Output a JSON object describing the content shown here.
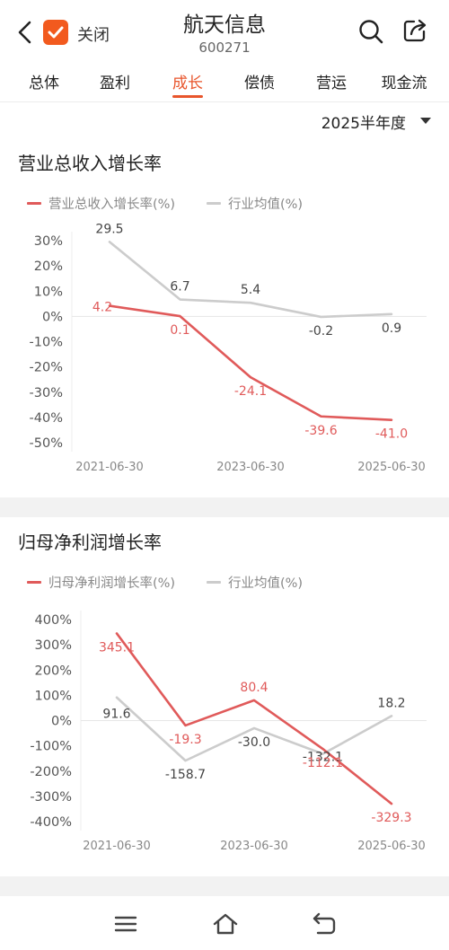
{
  "header": {
    "close_label": "关闭",
    "stock_name": "航天信息",
    "stock_code": "600271"
  },
  "tabs": [
    {
      "label": "总体",
      "active": false
    },
    {
      "label": "盈利",
      "active": false
    },
    {
      "label": "成长",
      "active": true
    },
    {
      "label": "偿债",
      "active": false
    },
    {
      "label": "营运",
      "active": false
    },
    {
      "label": "现金流",
      "active": false
    }
  ],
  "period": {
    "label": "2025半年度"
  },
  "colors": {
    "accent": "#e8552c",
    "series_main": "#e05a5a",
    "series_industry": "#cccccc"
  },
  "chart_data": [
    {
      "type": "line",
      "title": "营业总收入增长率",
      "x": [
        "2021-06-30",
        "2022-06-30",
        "2023-06-30",
        "2024-06-30",
        "2025-06-30"
      ],
      "x_tick_labels": [
        "2021-06-30",
        "2023-06-30",
        "2025-06-30"
      ],
      "y_tick_labels": [
        "30%",
        "20%",
        "10%",
        "0%",
        "-10%",
        "-20%",
        "-30%",
        "-40%",
        "-50%"
      ],
      "ylim": [
        -50,
        30
      ],
      "legend_position": "top-left",
      "grid": false,
      "series": [
        {
          "name": "营业总收入增长率(%)",
          "color": "#e05a5a",
          "values": [
            4.2,
            0.1,
            -24.1,
            -39.6,
            -41.0
          ],
          "labels": [
            "4.2",
            "0.1",
            "-24.1",
            "-39.6",
            "-41.0"
          ]
        },
        {
          "name": "行业均值(%)",
          "color": "#cccccc",
          "values": [
            29.5,
            6.7,
            5.4,
            -0.2,
            0.9
          ],
          "labels": [
            "29.5",
            "6.7",
            "5.4",
            "-0.2",
            "0.9"
          ]
        }
      ]
    },
    {
      "type": "line",
      "title": "归母净利润增长率",
      "x": [
        "2021-06-30",
        "2022-06-30",
        "2023-06-30",
        "2024-06-30",
        "2025-06-30"
      ],
      "x_tick_labels": [
        "2021-06-30",
        "2023-06-30",
        "2025-06-30"
      ],
      "y_tick_labels": [
        "400%",
        "300%",
        "200%",
        "100%",
        "0%",
        "-100%",
        "-200%",
        "-300%",
        "-400%"
      ],
      "ylim": [
        -400,
        400
      ],
      "legend_position": "top-left",
      "grid": false,
      "series": [
        {
          "name": "归母净利润增长率(%)",
          "color": "#e05a5a",
          "values": [
            345.1,
            -19.3,
            80.4,
            -112.1,
            -329.3
          ],
          "labels": [
            "345.1",
            "-19.3",
            "80.4",
            "-112.1",
            "-329.3"
          ]
        },
        {
          "name": "行业均值(%)",
          "color": "#cccccc",
          "values": [
            91.6,
            -158.7,
            -30.0,
            -132.1,
            18.2
          ],
          "labels": [
            "91.6",
            "-158.7",
            "-30.0",
            "-132.1",
            "18.2"
          ]
        }
      ]
    }
  ]
}
